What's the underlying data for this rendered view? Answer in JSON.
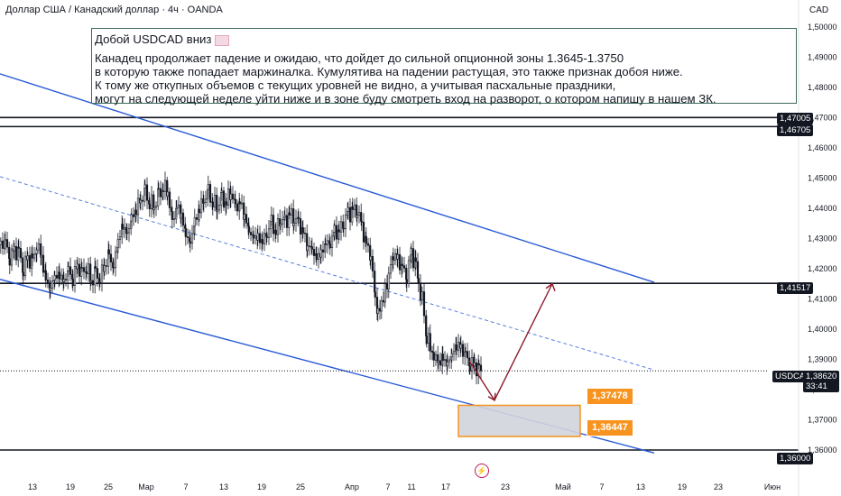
{
  "header": {
    "title": "Доллар США / Канадский доллар · 4ч · OANDA",
    "currency": "CAD"
  },
  "annotation": {
    "headline": "Добой USDCAD вниз",
    "lines": [
      "Канадец продолжает падение и ожидаю, что дойдет до сильной опционной зоны 1.3645-1.3750",
      "в которую также попадает маржиналка. Кумулятива на падении растущая, это также признак добоя ниже.",
      "К тому же откупных объемов с текущих уровней не видно, а учитывая пасхальные праздники,",
      "могут на следующей неделе уйти ниже и в зоне буду смотреть вход на разворот, о котором напишу в нашем ЗК."
    ]
  },
  "price_tags": {
    "level_1": "1,47005",
    "level_2": "1,46705",
    "level_3": "1,41517",
    "level_4": "1,36000",
    "ticker": "USDCAD",
    "current_price": "1,38620",
    "countdown": "33:41"
  },
  "zone_labels": {
    "upper": "1,37478",
    "lower": "1,36447"
  },
  "chart_data": {
    "type": "candlestick",
    "symbol": "USDCAD",
    "timeframe": "4ч",
    "y_ticks": [
      "1,50000",
      "1,49000",
      "1,48000",
      "1,47000",
      "1,46000",
      "1,45000",
      "1,44000",
      "1,43000",
      "1,42000",
      "1,41000",
      "1,40000",
      "1,39000",
      "1,38000",
      "1,37000",
      "1,36000"
    ],
    "x_ticks": [
      "13",
      "19",
      "25",
      "Мар",
      "7",
      "13",
      "19",
      "25",
      "Апр",
      "7",
      "11",
      "17",
      "23",
      "Май",
      "7",
      "13",
      "19",
      "23",
      "Июн"
    ],
    "ylim": [
      1.355,
      1.502
    ],
    "horizontal_levels": [
      1.47005,
      1.46705,
      1.41517,
      1.36
    ],
    "current_price": 1.3862,
    "zone": [
      1.36447,
      1.37478
    ],
    "close_path": [
      [
        0,
        1.428
      ],
      [
        5,
        1.4285
      ],
      [
        10,
        1.424
      ],
      [
        15,
        1.426
      ],
      [
        20,
        1.425
      ],
      [
        25,
        1.4205
      ],
      [
        30,
        1.4235
      ],
      [
        35,
        1.422
      ],
      [
        40,
        1.428
      ],
      [
        45,
        1.424
      ],
      [
        50,
        1.416
      ],
      [
        55,
        1.414
      ],
      [
        60,
        1.417
      ],
      [
        65,
        1.418
      ],
      [
        70,
        1.416
      ],
      [
        75,
        1.419
      ],
      [
        80,
        1.417
      ],
      [
        85,
        1.421
      ],
      [
        90,
        1.418
      ],
      [
        95,
        1.421
      ],
      [
        100,
        1.416
      ],
      [
        105,
        1.418
      ],
      [
        110,
        1.417
      ],
      [
        115,
        1.421
      ],
      [
        120,
        1.424
      ],
      [
        125,
        1.421
      ],
      [
        130,
        1.429
      ],
      [
        135,
        1.434
      ],
      [
        140,
        1.432
      ],
      [
        145,
        1.436
      ],
      [
        150,
        1.44
      ],
      [
        155,
        1.443
      ],
      [
        160,
        1.445
      ],
      [
        165,
        1.442
      ],
      [
        170,
        1.441
      ],
      [
        175,
        1.444
      ],
      [
        180,
        1.447
      ],
      [
        185,
        1.446
      ],
      [
        190,
        1.435
      ],
      [
        195,
        1.441
      ],
      [
        200,
        1.438
      ],
      [
        205,
        1.431
      ],
      [
        210,
        1.429
      ],
      [
        215,
        1.435
      ],
      [
        220,
        1.44
      ],
      [
        225,
        1.443
      ],
      [
        230,
        1.445
      ],
      [
        235,
        1.442
      ],
      [
        240,
        1.441
      ],
      [
        245,
        1.443
      ],
      [
        250,
        1.442
      ],
      [
        255,
        1.446
      ],
      [
        260,
        1.44
      ],
      [
        265,
        1.442
      ],
      [
        270,
        1.438
      ],
      [
        275,
        1.432
      ],
      [
        280,
        1.431
      ],
      [
        285,
        1.43
      ],
      [
        290,
        1.429
      ],
      [
        295,
        1.432
      ],
      [
        300,
        1.435
      ],
      [
        305,
        1.432
      ],
      [
        310,
        1.437
      ],
      [
        315,
        1.435
      ],
      [
        320,
        1.438
      ],
      [
        325,
        1.437
      ],
      [
        330,
        1.435
      ],
      [
        335,
        1.432
      ],
      [
        340,
        1.428
      ],
      [
        345,
        1.426
      ],
      [
        350,
        1.424
      ],
      [
        355,
        1.425
      ],
      [
        360,
        1.428
      ],
      [
        365,
        1.429
      ],
      [
        370,
        1.432
      ],
      [
        375,
        1.432
      ],
      [
        380,
        1.436
      ],
      [
        385,
        1.438
      ],
      [
        390,
        1.439
      ],
      [
        395,
        1.44
      ],
      [
        400,
        1.434
      ],
      [
        405,
        1.428
      ],
      [
        410,
        1.425
      ],
      [
        415,
        1.41
      ],
      [
        418,
        1.405
      ],
      [
        422,
        1.409
      ],
      [
        426,
        1.412
      ],
      [
        430,
        1.418
      ],
      [
        435,
        1.425
      ],
      [
        440,
        1.423
      ],
      [
        445,
        1.42
      ],
      [
        450,
        1.418
      ],
      [
        455,
        1.425
      ],
      [
        460,
        1.421
      ],
      [
        463,
        1.414
      ],
      [
        467,
        1.41
      ],
      [
        472,
        1.398
      ],
      [
        476,
        1.394
      ],
      [
        480,
        1.391
      ],
      [
        485,
        1.389
      ],
      [
        490,
        1.39
      ],
      [
        495,
        1.389
      ],
      [
        500,
        1.391
      ],
      [
        505,
        1.395
      ],
      [
        510,
        1.394
      ],
      [
        515,
        1.391
      ],
      [
        520,
        1.389
      ],
      [
        525,
        1.388
      ],
      [
        530,
        1.386
      ],
      [
        533,
        1.3862
      ]
    ],
    "channel": [
      [
        [
          0,
          1.4845
        ],
        [
          725,
          1.4155
        ]
      ],
      [
        [
          0,
          1.4165
        ],
        [
          725,
          1.359
        ]
      ]
    ],
    "channel_mid": [
      [
        0,
        1.4505
      ],
      [
        725,
        1.3865
      ]
    ],
    "projection_arrow": [
      [
        520,
        1.3895
      ],
      [
        548,
        1.3765
      ],
      [
        612,
        1.415
      ]
    ]
  }
}
